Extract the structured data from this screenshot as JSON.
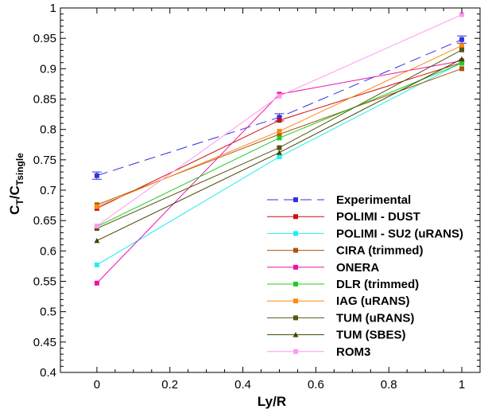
{
  "chart_data": {
    "type": "line",
    "xlabel": "Ly/R",
    "ylabel": {
      "main": "C",
      "sub1": "T",
      "slash": "/C",
      "sub2": "Tsingle"
    },
    "xlim": [
      -0.1,
      1.05
    ],
    "ylim": [
      0.4,
      1.0
    ],
    "xticks": [
      0,
      0.2,
      0.4,
      0.6,
      0.8,
      1
    ],
    "yticks": [
      0.4,
      0.45,
      0.5,
      0.55,
      0.6,
      0.65,
      0.7,
      0.75,
      0.8,
      0.85,
      0.9,
      0.95,
      1
    ],
    "xtick_labels": [
      "0",
      "0.2",
      "0.4",
      "0.6",
      "0.8",
      "1"
    ],
    "ytick_labels": [
      "0.4",
      "0.45",
      "0.5",
      "0.55",
      "0.6",
      "0.65",
      "0.7",
      "0.75",
      "0.8",
      "0.85",
      "0.9",
      "0.95",
      "1"
    ],
    "legend_position": "bottom-right",
    "x": [
      0,
      0.5,
      1
    ],
    "series": [
      {
        "name": "Experimental",
        "values": [
          0.724,
          0.82,
          0.948
        ],
        "color": "#3333dd",
        "marker": "square",
        "dash": true,
        "errorbars": [
          0.006,
          0.006,
          0.006
        ]
      },
      {
        "name": "POLIMI - DUST",
        "values": [
          0.67,
          0.815,
          0.91
        ],
        "color": "#cc1111",
        "marker": "square"
      },
      {
        "name": "POLIMI - SU2 (uRANS)",
        "values": [
          0.577,
          0.755,
          0.91
        ],
        "color": "#22eeee",
        "marker": "square"
      },
      {
        "name": "CIRA (trimmed)",
        "values": [
          0.676,
          0.792,
          0.9
        ],
        "color": "#aa5511",
        "marker": "square"
      },
      {
        "name": "ONERA",
        "values": [
          0.547,
          0.858,
          0.913
        ],
        "color": "#ee11aa",
        "marker": "square"
      },
      {
        "name": "DLR (trimmed)",
        "values": [
          0.64,
          0.786,
          0.909
        ],
        "color": "#22cc22",
        "marker": "square"
      },
      {
        "name": "IAG (uRANS)",
        "values": [
          0.673,
          0.797,
          0.938
        ],
        "color": "#ff8811",
        "marker": "square"
      },
      {
        "name": "TUM (uRANS)",
        "values": [
          0.637,
          0.77,
          0.931
        ],
        "color": "#555511",
        "marker": "square"
      },
      {
        "name": "TUM (SBES)",
        "values": [
          0.617,
          0.762,
          0.916
        ],
        "color": "#444400",
        "marker": "triangle"
      },
      {
        "name": "ROM3",
        "values": [
          0.641,
          0.855,
          0.989
        ],
        "color": "#ff99ee",
        "marker": "square"
      }
    ]
  }
}
